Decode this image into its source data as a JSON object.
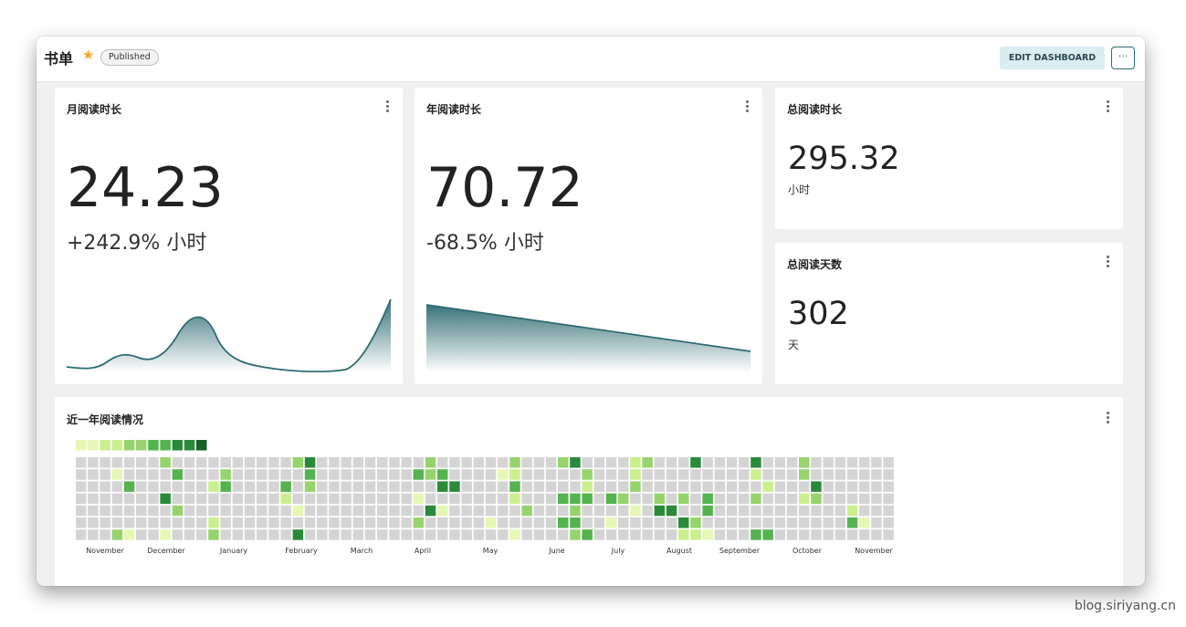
{
  "header": {
    "title": "书单",
    "badge": "Published",
    "edit_label": "EDIT DASHBOARD",
    "more_label": "···"
  },
  "cards": {
    "monthly": {
      "title": "月阅读时长",
      "value": "24.23",
      "change": "+242.9% 小时"
    },
    "yearly": {
      "title": "年阅读时长",
      "value": "70.72",
      "change": "-68.5% 小时"
    },
    "total_hours": {
      "title": "总阅读时长",
      "value": "295.32",
      "unit": "小时"
    },
    "total_days": {
      "title": "总阅读天数",
      "value": "302",
      "unit": "天"
    },
    "heatmap": {
      "title": "近一年阅读情况",
      "months": [
        "November",
        "December",
        "January",
        "February",
        "March",
        "April",
        "May",
        "June",
        "July",
        "August",
        "September",
        "October",
        "November"
      ]
    }
  },
  "colors": {
    "accent": "#2f6b73",
    "star": "#f5a623",
    "heat_empty": "#d4d4d4",
    "heat_levels": [
      "#d4d4d4",
      "#e6f7b4",
      "#cbef8e",
      "#97d36c",
      "#55b34f",
      "#2a8a3a",
      "#165f25"
    ]
  },
  "watermark": "blog.siriyang.cn"
}
